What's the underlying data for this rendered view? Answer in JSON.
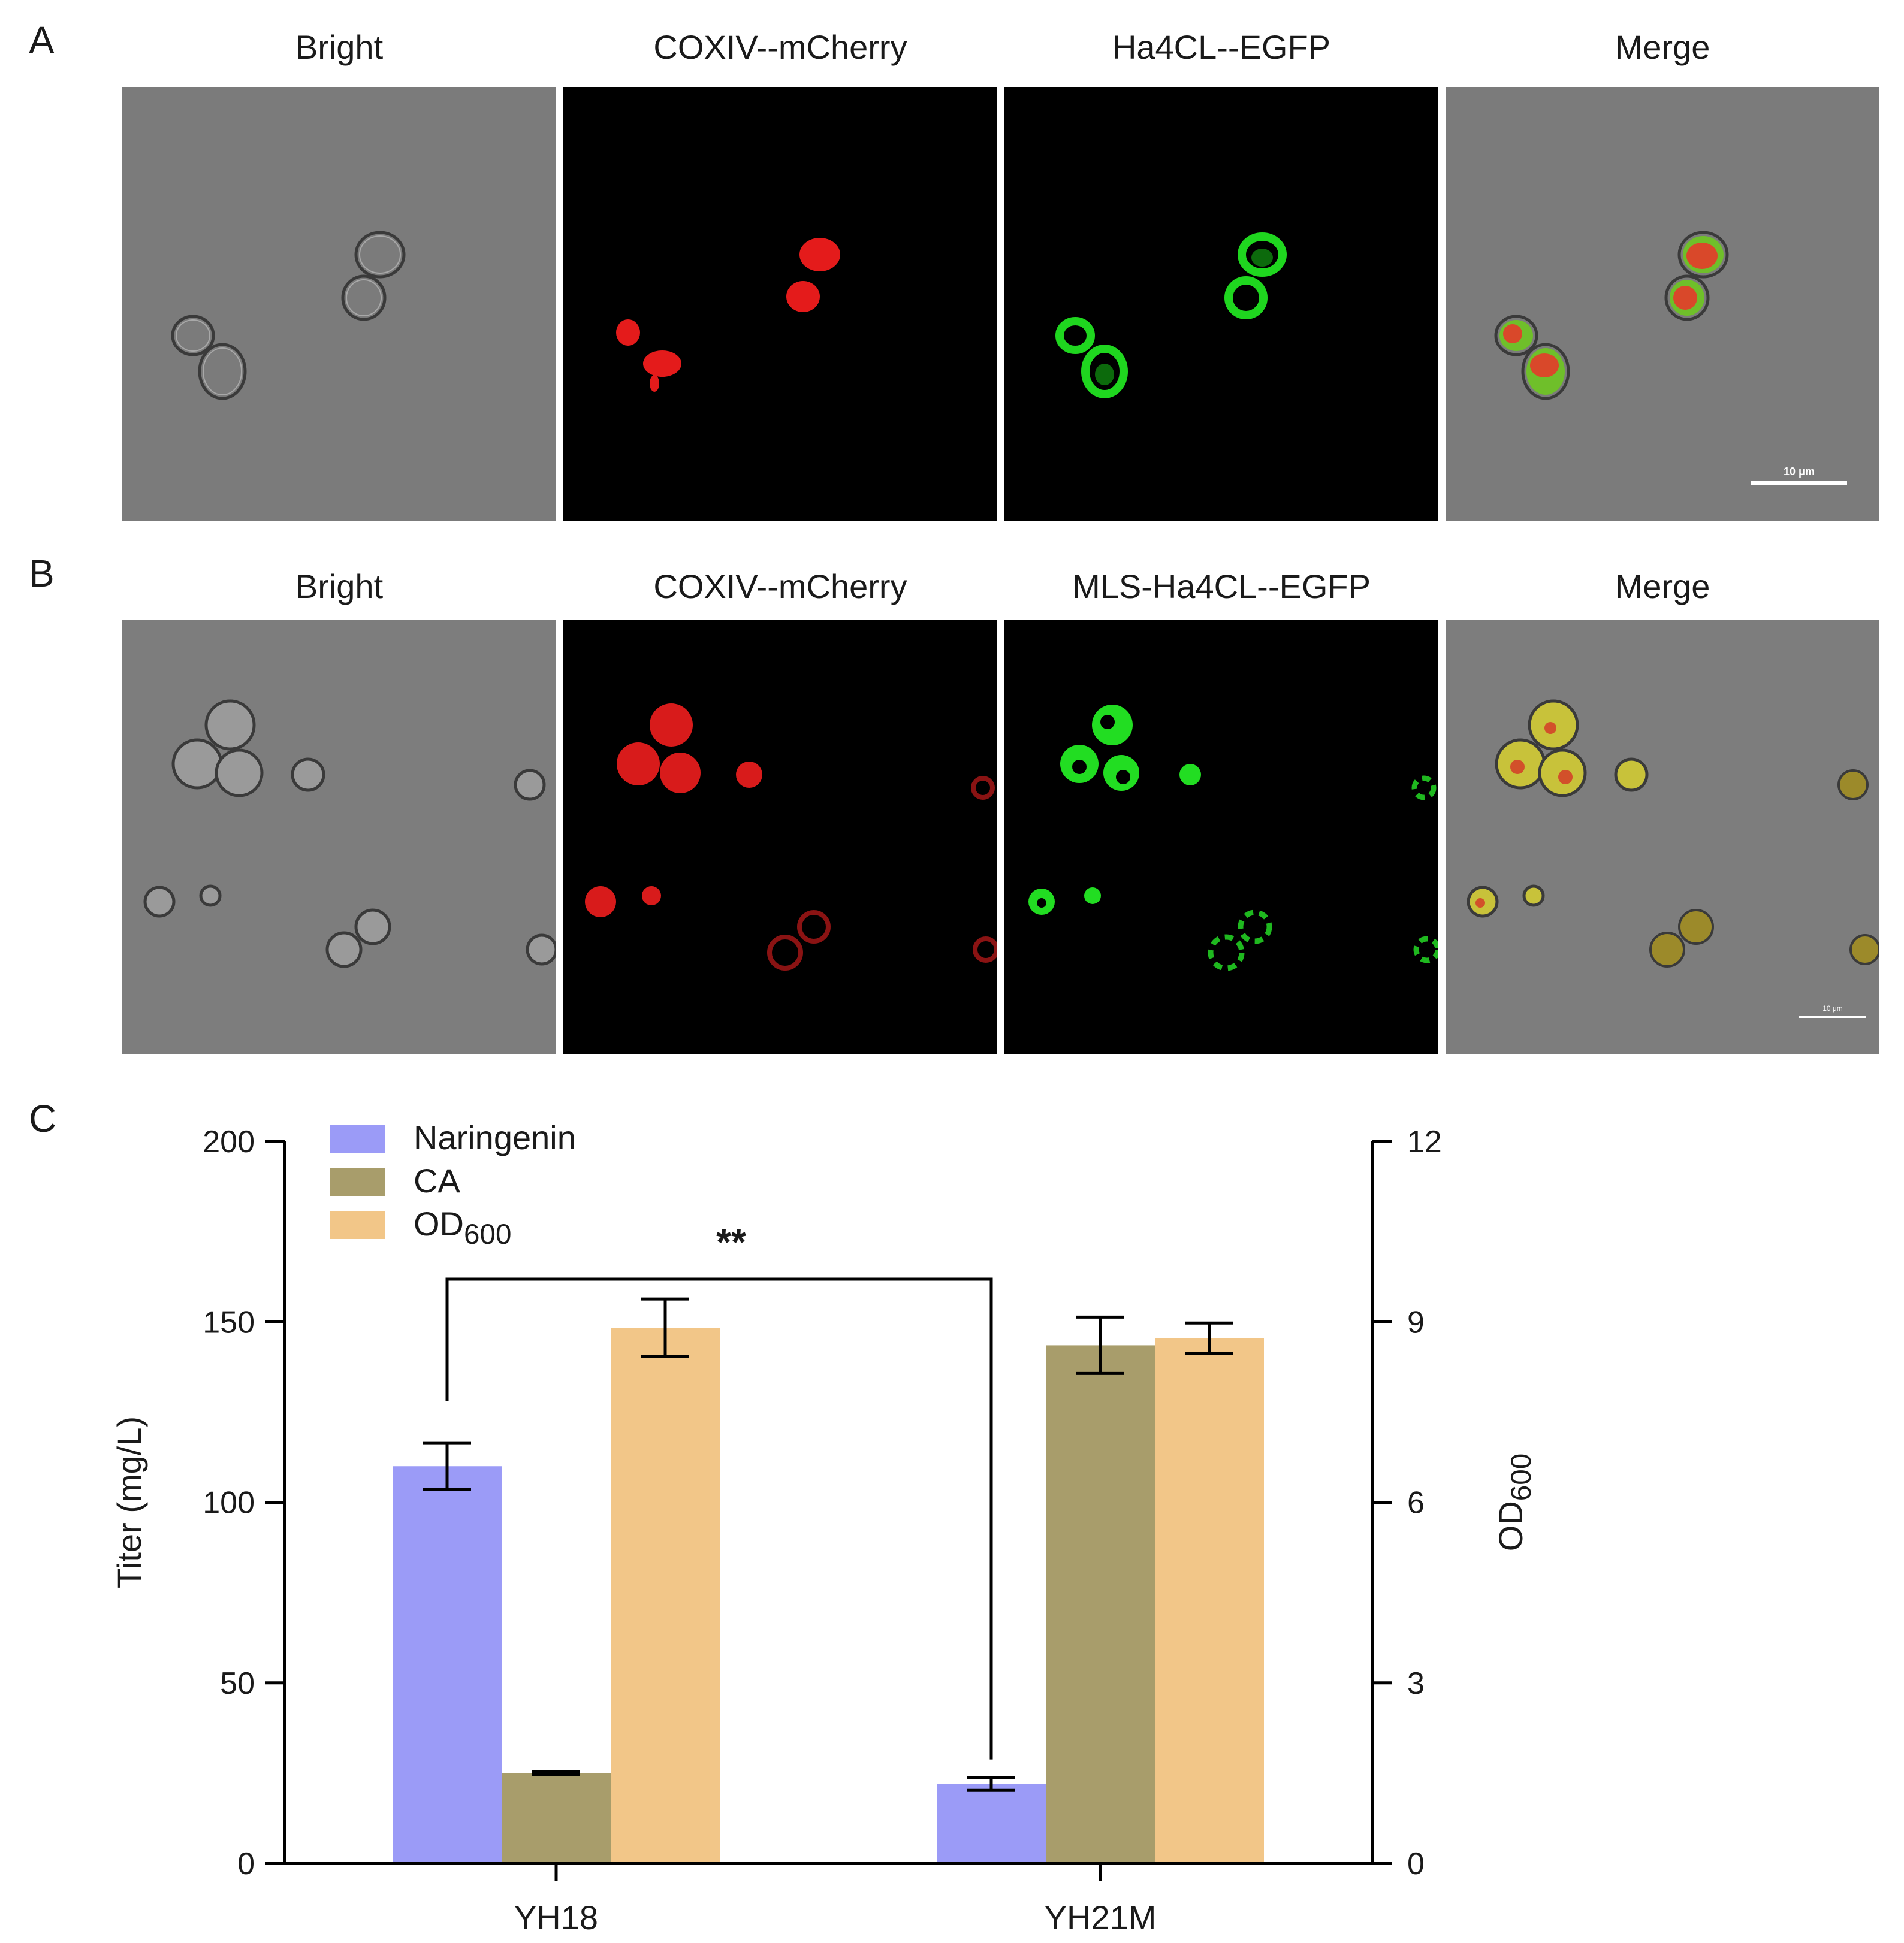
{
  "figure": {
    "panel_labels": [
      "A",
      "B",
      "C"
    ],
    "panel_a": {
      "columns": [
        "Bright",
        "COXIV--mCherry",
        "Ha4CL--EGFP",
        "Merge"
      ],
      "scale_bar_label": "10 μm"
    },
    "panel_b": {
      "columns": [
        "Bright",
        "COXIV--mCherry",
        "MLS-Ha4CL--EGFP",
        "Merge"
      ],
      "scale_bar_label": "10 μm"
    }
  },
  "chart_data": {
    "type": "bar",
    "categories": [
      "YH18",
      "YH21M"
    ],
    "series": [
      {
        "name": "Naringenin",
        "axis": "left",
        "values": [
          110,
          22
        ],
        "errors": [
          6.5,
          1.8
        ],
        "color": "#9b9bf7"
      },
      {
        "name": "CA",
        "axis": "left",
        "values": [
          25,
          143.5
        ],
        "errors": [
          0.4,
          7.8
        ],
        "color": "#a89d6b"
      },
      {
        "name": "OD600",
        "axis": "right",
        "values": [
          8.9,
          8.73
        ],
        "errors": [
          0.48,
          0.25
        ],
        "color": "#f2c688"
      }
    ],
    "ylabel": "Titer (mg/L)",
    "ylim": [
      0,
      200
    ],
    "yticks": [
      "0",
      "50",
      "100",
      "150",
      "200"
    ],
    "y2label": "OD600",
    "y2lim": [
      0,
      12
    ],
    "y2ticks": [
      "0",
      "3",
      "6",
      "9",
      "12"
    ],
    "significance": {
      "label": "**",
      "between": [
        "YH18 Naringenin",
        "YH21M Naringenin"
      ]
    },
    "legend_position": "top-left",
    "grid": false
  }
}
